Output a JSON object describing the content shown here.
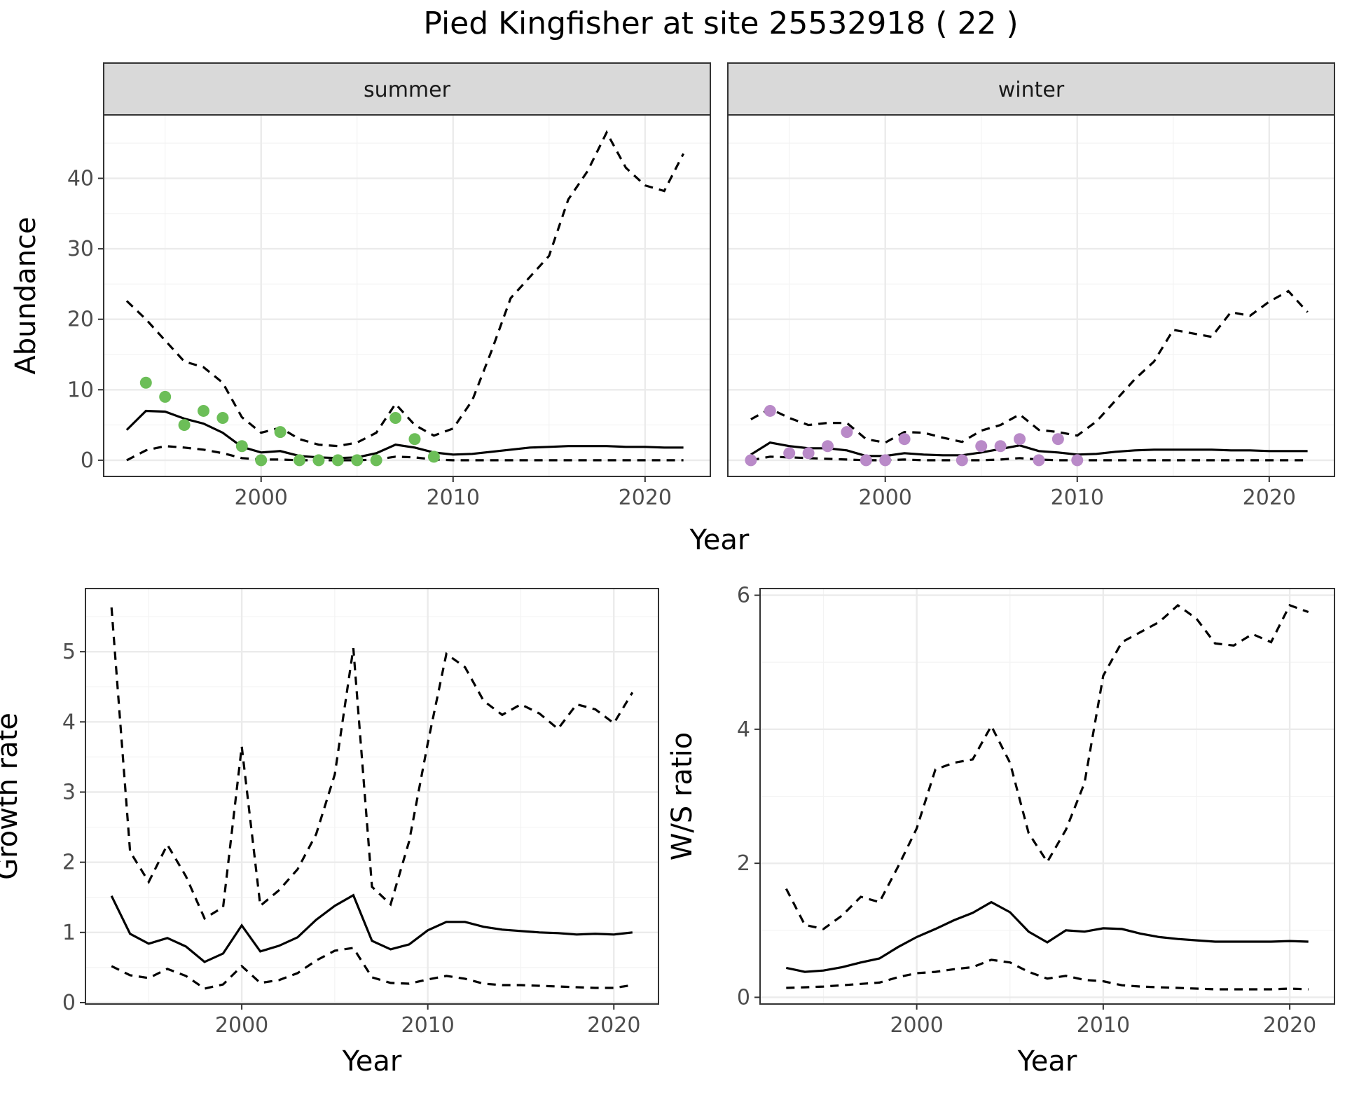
{
  "figure": {
    "title": "Pied Kingfisher at site 25532918 ( 22 )"
  },
  "chart_data": [
    {
      "id": "abundance-summer",
      "type": "line",
      "facet": "summer",
      "xlabel": "Year",
      "ylabel": "Abundance",
      "xlim": [
        1991.8,
        2023.4
      ],
      "ylim": [
        -2.3,
        49
      ],
      "xticks": [
        2000,
        2010,
        2020
      ],
      "yticks": [
        0,
        10,
        20,
        30,
        40
      ],
      "grid": true,
      "point_color": "#6cbe58",
      "series": [
        {
          "role": "estimate",
          "x": [
            1993,
            1994,
            1995,
            1996,
            1997,
            1998,
            1999,
            2000,
            2001,
            2002,
            2003,
            2004,
            2005,
            2006,
            2007,
            2008,
            2009,
            2010,
            2011,
            2012,
            2013,
            2014,
            2015,
            2016,
            2017,
            2018,
            2019,
            2020,
            2021,
            2022
          ],
          "y": [
            4.3,
            7,
            6.9,
            5.9,
            5.2,
            3.9,
            1.9,
            1.1,
            1.3,
            0.6,
            0.4,
            0.3,
            0.4,
            1,
            2.2,
            1.8,
            1.1,
            0.8,
            0.9,
            1.2,
            1.5,
            1.8,
            1.9,
            2,
            2,
            2,
            1.9,
            1.9,
            1.8,
            1.8
          ]
        },
        {
          "role": "upper",
          "x": [
            1993,
            1994,
            1995,
            1996,
            1997,
            1998,
            1999,
            2000,
            2001,
            2002,
            2003,
            2004,
            2005,
            2006,
            2007,
            2008,
            2009,
            2010,
            2011,
            2012,
            2013,
            2014,
            2015,
            2016,
            2017,
            2018,
            2019,
            2020,
            2021,
            2022
          ],
          "y": [
            22.6,
            20,
            17,
            14,
            13.2,
            11,
            6.1,
            3.9,
            4.6,
            3,
            2.2,
            2,
            2.5,
            3.9,
            8,
            5,
            3.5,
            4.5,
            8.5,
            15.5,
            23,
            26,
            29,
            37,
            41,
            46.5,
            41.5,
            39,
            38.2,
            43.5
          ]
        },
        {
          "role": "lower",
          "x": [
            1993,
            1994,
            1995,
            1996,
            1997,
            1998,
            1999,
            2000,
            2001,
            2002,
            2003,
            2004,
            2005,
            2006,
            2007,
            2008,
            2009,
            2010,
            2011,
            2012,
            2013,
            2014,
            2015,
            2016,
            2017,
            2018,
            2019,
            2020,
            2021,
            2022
          ],
          "y": [
            0,
            1.4,
            2,
            1.8,
            1.5,
            1,
            0.3,
            0.1,
            0.1,
            0,
            0,
            0,
            0,
            0.1,
            0.5,
            0.4,
            0.1,
            0,
            0,
            0,
            0,
            0,
            0,
            0,
            0,
            0,
            0,
            0,
            0,
            0
          ]
        },
        {
          "role": "observed",
          "x": [
            1994,
            1995,
            1996,
            1997,
            1998,
            1999,
            2000,
            2001,
            2002,
            2003,
            2004,
            2005,
            2006,
            2007,
            2008,
            2009
          ],
          "y": [
            11,
            9,
            5,
            7,
            6,
            2,
            0,
            4,
            0,
            0,
            0,
            0,
            0,
            6,
            3,
            0.5
          ]
        }
      ]
    },
    {
      "id": "abundance-winter",
      "type": "line",
      "facet": "winter",
      "xlabel": "Year",
      "ylabel": "Abundance",
      "xlim": [
        1991.8,
        2023.4
      ],
      "ylim": [
        -2.3,
        49
      ],
      "xticks": [
        2000,
        2010,
        2020
      ],
      "yticks": [
        0,
        10,
        20,
        30,
        40
      ],
      "grid": true,
      "point_color": "#b98ac8",
      "series": [
        {
          "role": "estimate",
          "x": [
            1993,
            1994,
            1995,
            1996,
            1997,
            1998,
            1999,
            2000,
            2001,
            2002,
            2003,
            2004,
            2005,
            2006,
            2007,
            2008,
            2009,
            2010,
            2011,
            2012,
            2013,
            2014,
            2015,
            2016,
            2017,
            2018,
            2019,
            2020,
            2021,
            2022
          ],
          "y": [
            0.8,
            2.5,
            2,
            1.7,
            1.7,
            1.4,
            0.6,
            0.6,
            1,
            0.8,
            0.7,
            0.7,
            1.1,
            1.6,
            2.1,
            1.3,
            1.1,
            0.8,
            0.9,
            1.2,
            1.4,
            1.5,
            1.5,
            1.5,
            1.5,
            1.4,
            1.4,
            1.3,
            1.3,
            1.3
          ]
        },
        {
          "role": "upper",
          "x": [
            1993,
            1994,
            1995,
            1996,
            1997,
            1998,
            1999,
            2000,
            2001,
            2002,
            2003,
            2004,
            2005,
            2006,
            2007,
            2008,
            2009,
            2010,
            2011,
            2012,
            2013,
            2014,
            2015,
            2016,
            2017,
            2018,
            2019,
            2020,
            2021,
            2022
          ],
          "y": [
            5.8,
            7.3,
            6,
            5,
            5.3,
            5.3,
            3,
            2.5,
            4,
            3.9,
            3.2,
            2.6,
            4.2,
            5,
            6.5,
            4.3,
            4,
            3.5,
            5.5,
            8.5,
            11.5,
            14,
            18.5,
            18,
            17.5,
            21,
            20.5,
            22.5,
            24,
            21
          ]
        },
        {
          "role": "lower",
          "x": [
            1993,
            1994,
            1995,
            1996,
            1997,
            1998,
            1999,
            2000,
            2001,
            2002,
            2003,
            2004,
            2005,
            2006,
            2007,
            2008,
            2009,
            2010,
            2011,
            2012,
            2013,
            2014,
            2015,
            2016,
            2017,
            2018,
            2019,
            2020,
            2021,
            2022
          ],
          "y": [
            0,
            0.5,
            0.4,
            0.3,
            0.2,
            0.1,
            0,
            0,
            0.1,
            0,
            0,
            0,
            0,
            0.1,
            0.3,
            0.1,
            0,
            0,
            0,
            0,
            0,
            0,
            0,
            0,
            0,
            0,
            0,
            0,
            0,
            0
          ]
        },
        {
          "role": "observed",
          "x": [
            1993,
            1994,
            1995,
            1996,
            1997,
            1998,
            1999,
            2000,
            2001,
            2004,
            2005,
            2006,
            2007,
            2008,
            2009,
            2010
          ],
          "y": [
            0,
            7,
            1,
            1,
            2,
            4,
            0,
            0,
            3,
            0,
            2,
            2,
            3,
            0,
            3,
            0
          ]
        }
      ]
    },
    {
      "id": "growth-rate",
      "type": "line",
      "xlabel": "Year",
      "ylabel": "Growth rate",
      "xlim": [
        1991.6,
        2022.4
      ],
      "ylim": [
        -0.02,
        5.9
      ],
      "xticks": [
        2000,
        2010,
        2020
      ],
      "yticks": [
        0,
        1,
        2,
        3,
        4,
        5
      ],
      "grid": true,
      "series": [
        {
          "role": "estimate",
          "x": [
            1993,
            1994,
            1995,
            1996,
            1997,
            1998,
            1999,
            2000,
            2001,
            2002,
            2003,
            2004,
            2005,
            2006,
            2007,
            2008,
            2009,
            2010,
            2011,
            2012,
            2013,
            2014,
            2015,
            2016,
            2017,
            2018,
            2019,
            2020,
            2021
          ],
          "y": [
            1.52,
            0.98,
            0.84,
            0.92,
            0.8,
            0.58,
            0.7,
            1.1,
            0.73,
            0.81,
            0.93,
            1.18,
            1.38,
            1.53,
            0.88,
            0.76,
            0.83,
            1.03,
            1.15,
            1.15,
            1.08,
            1.04,
            1.02,
            1,
            0.99,
            0.97,
            0.98,
            0.97,
            1
          ]
        },
        {
          "role": "upper",
          "x": [
            1993,
            1994,
            1995,
            1996,
            1997,
            1998,
            1999,
            2000,
            2001,
            2002,
            2003,
            2004,
            2005,
            2006,
            2007,
            2008,
            2009,
            2010,
            2011,
            2012,
            2013,
            2014,
            2015,
            2016,
            2017,
            2018,
            2019,
            2020,
            2021
          ],
          "y": [
            5.63,
            2.15,
            1.72,
            2.25,
            1.8,
            1.2,
            1.36,
            3.65,
            1.38,
            1.6,
            1.9,
            2.4,
            3.25,
            5.05,
            1.65,
            1.4,
            2.3,
            3.7,
            4.97,
            4.78,
            4.3,
            4.1,
            4.25,
            4.12,
            3.9,
            4.25,
            4.18,
            3.98,
            4.42
          ]
        },
        {
          "role": "lower",
          "x": [
            1993,
            1994,
            1995,
            1996,
            1997,
            1998,
            1999,
            2000,
            2001,
            2002,
            2003,
            2004,
            2005,
            2006,
            2007,
            2008,
            2009,
            2010,
            2011,
            2012,
            2013,
            2014,
            2015,
            2016,
            2017,
            2018,
            2019,
            2020,
            2021
          ],
          "y": [
            0.52,
            0.39,
            0.35,
            0.48,
            0.38,
            0.2,
            0.26,
            0.52,
            0.28,
            0.32,
            0.42,
            0.6,
            0.74,
            0.78,
            0.36,
            0.28,
            0.27,
            0.33,
            0.38,
            0.34,
            0.27,
            0.25,
            0.25,
            0.24,
            0.23,
            0.22,
            0.21,
            0.21,
            0.25
          ]
        }
      ]
    },
    {
      "id": "ws-ratio",
      "type": "line",
      "xlabel": "Year",
      "ylabel": "W/S ratio",
      "xlim": [
        1991.6,
        2022.4
      ],
      "ylim": [
        -0.1,
        6.1
      ],
      "xticks": [
        2000,
        2010,
        2020
      ],
      "yticks": [
        0,
        2,
        4,
        6
      ],
      "grid": true,
      "series": [
        {
          "role": "estimate",
          "x": [
            1993,
            1994,
            1995,
            1996,
            1997,
            1998,
            1999,
            2000,
            2001,
            2002,
            2003,
            2004,
            2005,
            2006,
            2007,
            2008,
            2009,
            2010,
            2011,
            2012,
            2013,
            2014,
            2015,
            2016,
            2017,
            2018,
            2019,
            2020,
            2021
          ],
          "y": [
            0.44,
            0.38,
            0.4,
            0.45,
            0.52,
            0.58,
            0.75,
            0.9,
            1.02,
            1.15,
            1.26,
            1.42,
            1.27,
            0.98,
            0.82,
            1,
            0.98,
            1.03,
            1.02,
            0.95,
            0.9,
            0.87,
            0.85,
            0.83,
            0.83,
            0.83,
            0.83,
            0.84,
            0.83
          ]
        },
        {
          "role": "upper",
          "x": [
            1993,
            1994,
            1995,
            1996,
            1997,
            1998,
            1999,
            2000,
            2001,
            2002,
            2003,
            2004,
            2005,
            2006,
            2007,
            2008,
            2009,
            2010,
            2011,
            2012,
            2013,
            2014,
            2015,
            2016,
            2017,
            2018,
            2019,
            2020,
            2021
          ],
          "y": [
            1.62,
            1.08,
            1.02,
            1.22,
            1.5,
            1.42,
            1.95,
            2.52,
            3.4,
            3.5,
            3.55,
            4.05,
            3.5,
            2.45,
            2.02,
            2.5,
            3.2,
            4.8,
            5.3,
            5.45,
            5.6,
            5.85,
            5.65,
            5.28,
            5.25,
            5.42,
            5.3,
            5.85,
            5.75
          ]
        },
        {
          "role": "lower",
          "x": [
            1993,
            1994,
            1995,
            1996,
            1997,
            1998,
            1999,
            2000,
            2001,
            2002,
            2003,
            2004,
            2005,
            2006,
            2007,
            2008,
            2009,
            2010,
            2011,
            2012,
            2013,
            2014,
            2015,
            2016,
            2017,
            2018,
            2019,
            2020,
            2021
          ],
          "y": [
            0.14,
            0.15,
            0.16,
            0.18,
            0.2,
            0.22,
            0.3,
            0.36,
            0.38,
            0.42,
            0.45,
            0.56,
            0.52,
            0.38,
            0.28,
            0.32,
            0.26,
            0.24,
            0.18,
            0.16,
            0.15,
            0.14,
            0.13,
            0.12,
            0.12,
            0.12,
            0.12,
            0.13,
            0.12
          ]
        }
      ]
    }
  ]
}
